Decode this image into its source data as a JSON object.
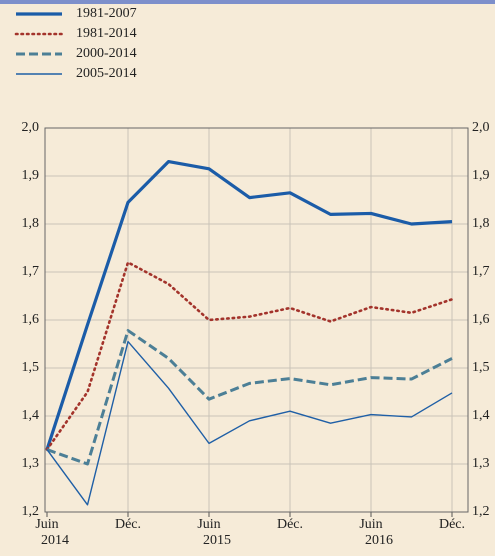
{
  "chart_data": {
    "type": "line",
    "categories": [
      "Juin",
      null,
      "Déc.",
      null,
      "Juin",
      null,
      "Déc.",
      null,
      "Juin",
      null,
      "Déc."
    ],
    "year_labels": [
      "2014",
      "2015",
      "2016"
    ],
    "series": [
      {
        "name": "1981-2007",
        "color": "#1b5ca8",
        "style": "solid",
        "width": 3.2,
        "values": [
          1.33,
          1.59,
          1.845,
          1.93,
          1.915,
          1.855,
          1.865,
          1.82,
          1.822,
          1.8,
          1.805
        ]
      },
      {
        "name": "1981-2014",
        "color": "#a3332b",
        "style": "dotted",
        "width": 2.6,
        "values": [
          1.33,
          1.45,
          1.72,
          1.675,
          1.6,
          1.607,
          1.625,
          1.597,
          1.627,
          1.615,
          1.643
        ]
      },
      {
        "name": "2000-2014",
        "color": "#4c7f96",
        "style": "dashed",
        "width": 3,
        "values": [
          1.33,
          1.3,
          1.578,
          1.52,
          1.435,
          1.468,
          1.478,
          1.465,
          1.48,
          1.477,
          1.52
        ]
      },
      {
        "name": "2005-2014",
        "color": "#1f5fa6",
        "style": "solid",
        "width": 1.4,
        "values": [
          1.33,
          1.215,
          1.555,
          1.458,
          1.343,
          1.39,
          1.41,
          1.385,
          1.403,
          1.398,
          1.448
        ]
      }
    ],
    "ylim": [
      1.2,
      2.0
    ],
    "yticks": [
      {
        "value": 1.2,
        "label": "1,2"
      },
      {
        "value": 1.3,
        "label": "1,3"
      },
      {
        "value": 1.4,
        "label": "1,4"
      },
      {
        "value": 1.5,
        "label": "1,5"
      },
      {
        "value": 1.6,
        "label": "1,6"
      },
      {
        "value": 1.7,
        "label": "1,7"
      },
      {
        "value": 1.8,
        "label": "1,8"
      },
      {
        "value": 1.9,
        "label": "1,9"
      },
      {
        "value": 2.0,
        "label": "2,0"
      }
    ],
    "grid": true
  }
}
